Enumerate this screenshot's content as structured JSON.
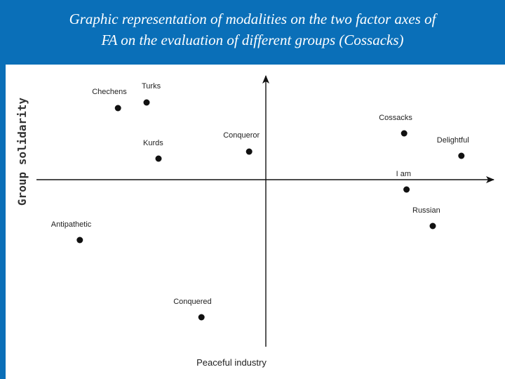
{
  "slide": {
    "title_line1": "Graphic representation of modalities on the two factor axes of",
    "title_line2": "FA  on the evaluation of different groups (Cossacks)"
  },
  "chart_data": {
    "type": "scatter",
    "xlabel": "Peaceful industry",
    "ylabel": "Group solidarity",
    "xlim": [
      -1,
      1
    ],
    "ylim": [
      -1,
      1
    ],
    "grid": false,
    "points": [
      {
        "label": "Turks",
        "x": -0.5,
        "y": 0.55
      },
      {
        "label": "Chechens",
        "x": -0.62,
        "y": 0.51
      },
      {
        "label": "Kurds",
        "x": -0.45,
        "y": 0.15
      },
      {
        "label": "Conqueror",
        "x": -0.07,
        "y": 0.2
      },
      {
        "label": "Cossacks",
        "x": 0.58,
        "y": 0.33
      },
      {
        "label": "Delightful",
        "x": 0.82,
        "y": 0.17
      },
      {
        "label": "I am",
        "x": 0.59,
        "y": -0.07
      },
      {
        "label": "Russian",
        "x": 0.7,
        "y": -0.33
      },
      {
        "label": "Antipathetic",
        "x": -0.78,
        "y": -0.43
      },
      {
        "label": "Conquered",
        "x": -0.27,
        "y": -0.98
      }
    ]
  }
}
